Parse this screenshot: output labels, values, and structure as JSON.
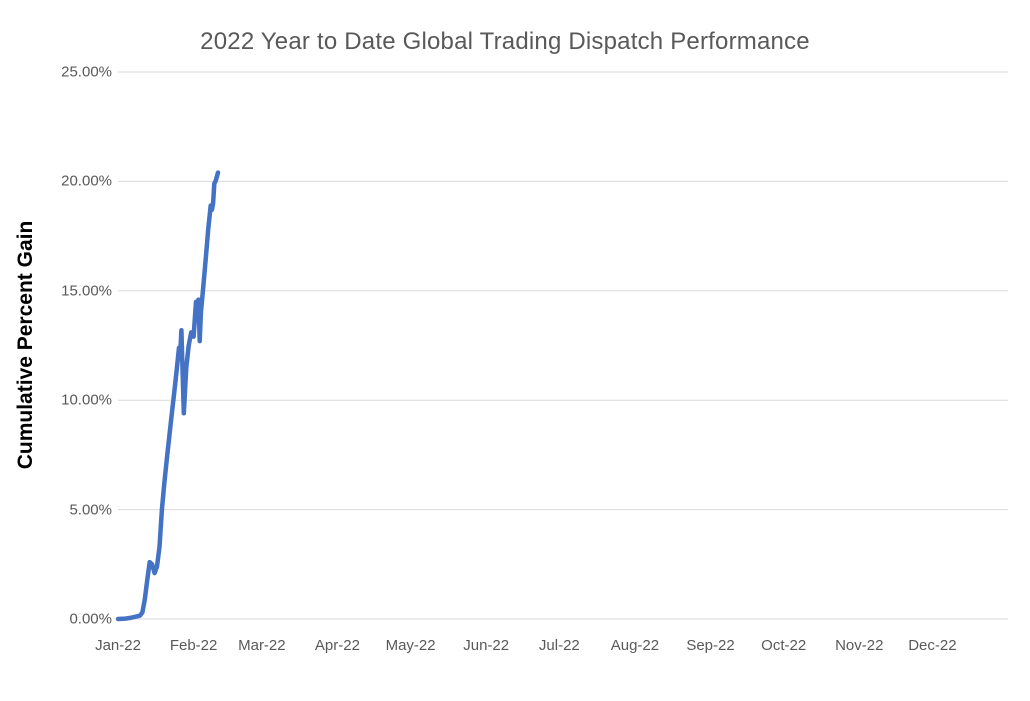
{
  "chart": {
    "title": "2022 Year to Date Global Trading Dispatch Performance",
    "y_axis_title": "Cumulative Percent Gain"
  },
  "chart_data": {
    "type": "line",
    "title": "2022 Year to Date Global Trading Dispatch Performance",
    "xlabel": "",
    "ylabel": "Cumulative Percent Gain",
    "legend": "none",
    "grid": true,
    "x_unit": "day-of-year-2022",
    "x_range": [
      0,
      365
    ],
    "ylim": [
      0,
      25
    ],
    "x_ticks": [
      {
        "day": 0,
        "label": "Jan-22"
      },
      {
        "day": 31,
        "label": "Feb-22"
      },
      {
        "day": 59,
        "label": "Mar-22"
      },
      {
        "day": 90,
        "label": "Apr-22"
      },
      {
        "day": 120,
        "label": "May-22"
      },
      {
        "day": 151,
        "label": "Jun-22"
      },
      {
        "day": 181,
        "label": "Jul-22"
      },
      {
        "day": 212,
        "label": "Aug-22"
      },
      {
        "day": 243,
        "label": "Sep-22"
      },
      {
        "day": 273,
        "label": "Oct-22"
      },
      {
        "day": 304,
        "label": "Nov-22"
      },
      {
        "day": 334,
        "label": "Dec-22"
      }
    ],
    "y_ticks": [
      {
        "value": 0,
        "label": "0.00%"
      },
      {
        "value": 5,
        "label": "5.00%"
      },
      {
        "value": 10,
        "label": "10.00%"
      },
      {
        "value": 15,
        "label": "15.00%"
      },
      {
        "value": 20,
        "label": "20.00%"
      },
      {
        "value": 25,
        "label": "25.00%"
      }
    ],
    "styles": {
      "line_color": "#4472C4",
      "line_width": 4.5,
      "grid_color": "#D9D9D9",
      "tick_label_color": "#595959",
      "title_color": "#595959",
      "axis_title_color": "#000000",
      "background": "#ffffff"
    },
    "series": [
      {
        "name": "Cumulative Percent Gain",
        "points": [
          [
            0,
            0.0
          ],
          [
            3,
            0.02
          ],
          [
            5,
            0.05
          ],
          [
            7,
            0.1
          ],
          [
            9,
            0.15
          ],
          [
            10,
            0.3
          ],
          [
            11,
            0.9
          ],
          [
            12,
            1.8
          ],
          [
            13,
            2.6
          ],
          [
            14,
            2.5
          ],
          [
            15,
            2.1
          ],
          [
            16,
            2.4
          ],
          [
            17,
            3.3
          ],
          [
            18,
            5.0
          ],
          [
            19,
            6.2
          ],
          [
            20,
            7.3
          ],
          [
            21,
            8.3
          ],
          [
            22,
            9.3
          ],
          [
            23,
            10.3
          ],
          [
            24,
            11.3
          ],
          [
            25,
            12.4
          ],
          [
            25.5,
            12.1
          ],
          [
            26,
            13.2
          ],
          [
            27,
            9.4
          ],
          [
            28,
            11.5
          ],
          [
            29,
            12.5
          ],
          [
            30,
            13.1
          ],
          [
            31,
            12.9
          ],
          [
            32,
            14.5
          ],
          [
            32.5,
            13.9
          ],
          [
            33,
            14.6
          ],
          [
            33.5,
            12.7
          ],
          [
            34,
            14.0
          ],
          [
            35,
            15.2
          ],
          [
            36,
            16.5
          ],
          [
            37,
            17.8
          ],
          [
            38,
            18.9
          ],
          [
            38.5,
            18.7
          ],
          [
            39,
            19.0
          ],
          [
            39.5,
            19.9
          ],
          [
            40,
            20.0
          ],
          [
            41,
            20.4
          ]
        ]
      }
    ]
  }
}
